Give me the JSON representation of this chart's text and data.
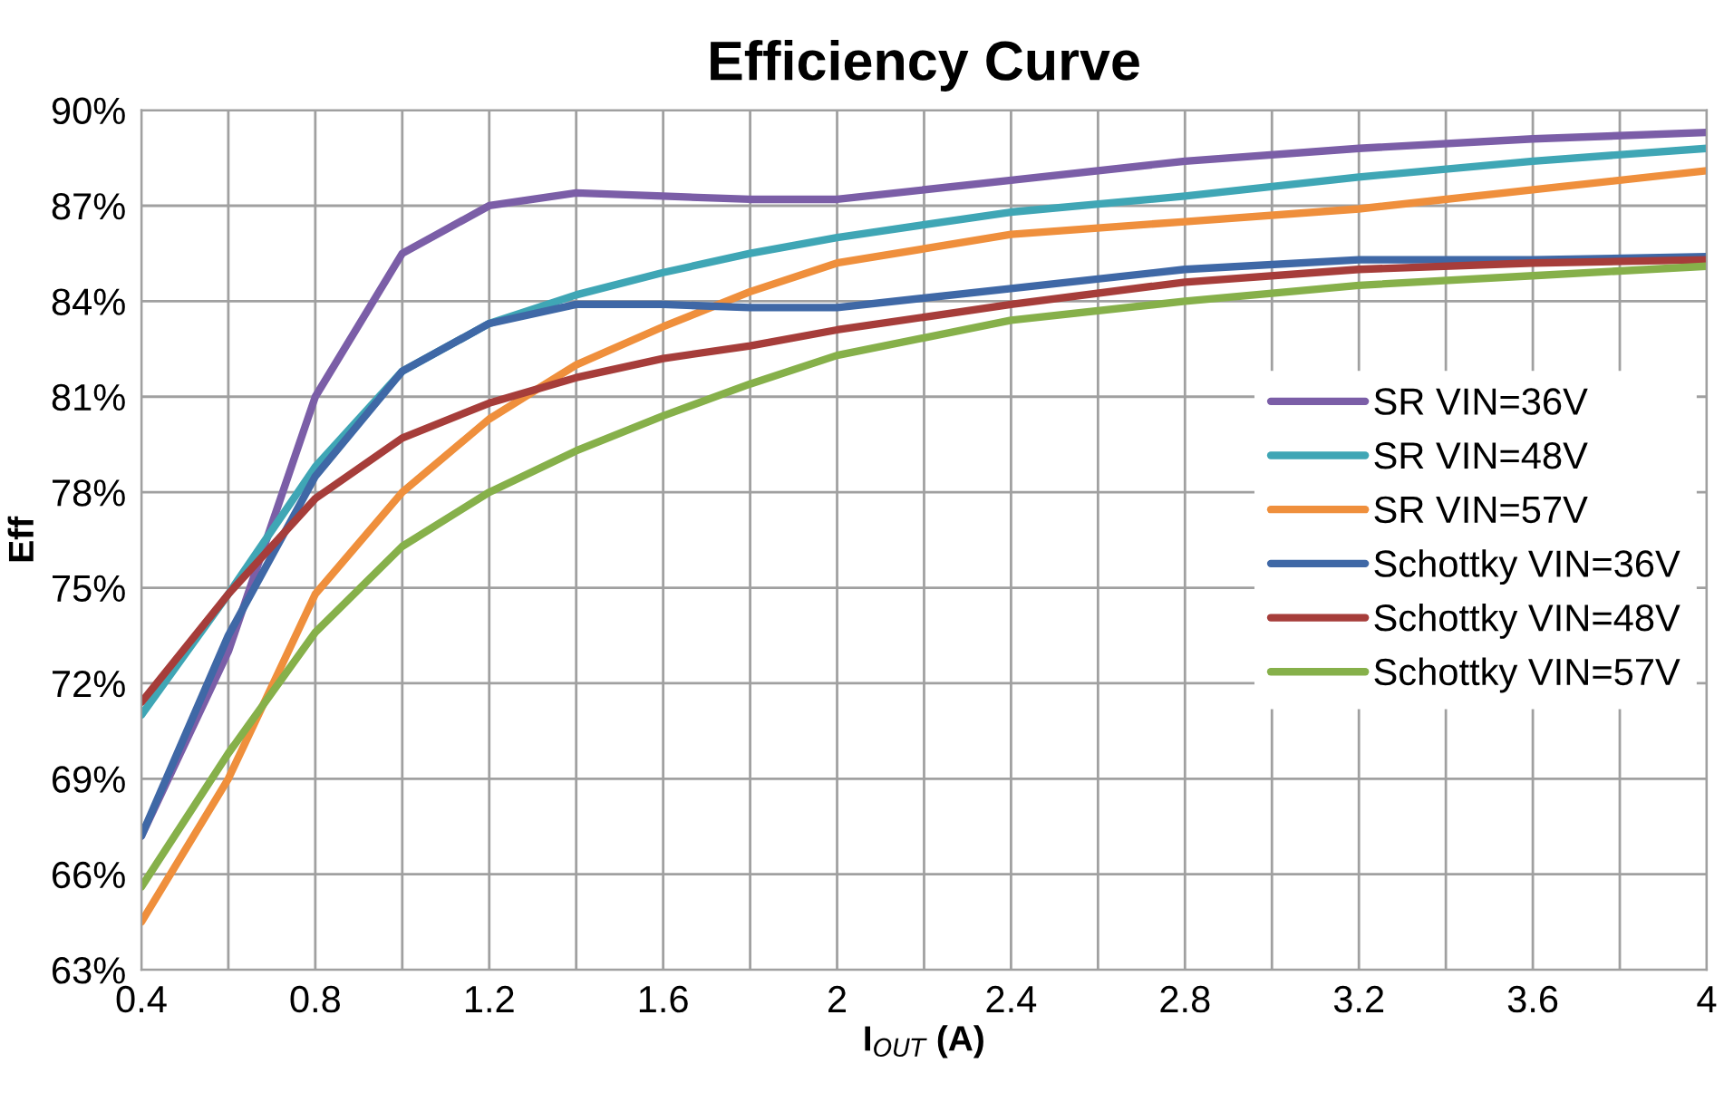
{
  "chart_data": {
    "type": "line",
    "title": "Efficiency Curve",
    "xlabel": "I$_{OUT}$ (A)",
    "ylabel": "Eff",
    "x": [
      0.4,
      0.6,
      0.8,
      1.0,
      1.2,
      1.4,
      1.6,
      1.8,
      2.0,
      2.4,
      2.8,
      3.2,
      3.6,
      4.0
    ],
    "series": [
      {
        "name": "SR VIN=36V",
        "color": "#7b5ea7",
        "values": [
          67.2,
          73,
          81,
          85.5,
          87.0,
          87.4,
          87.3,
          87.2,
          87.2,
          87.8,
          88.4,
          88.8,
          89.1,
          89.3
        ]
      },
      {
        "name": "SR VIN=48V",
        "color": "#3fa6b5",
        "values": [
          71.0,
          74.8,
          78.8,
          81.8,
          83.3,
          84.2,
          84.9,
          85.5,
          86.0,
          86.8,
          87.3,
          87.9,
          88.4,
          88.8
        ]
      },
      {
        "name": "SR VIN=57V",
        "color": "#ef8f3c",
        "values": [
          64.5,
          69.0,
          74.8,
          78.0,
          80.3,
          82.0,
          83.2,
          84.3,
          85.2,
          86.1,
          86.5,
          86.9,
          87.5,
          88.1
        ]
      },
      {
        "name": "Schottky VIN=36V",
        "color": "#3f68a6",
        "values": [
          67.2,
          73.5,
          78.5,
          81.8,
          83.3,
          83.9,
          83.9,
          83.8,
          83.8,
          84.4,
          85.0,
          85.3,
          85.3,
          85.4
        ]
      },
      {
        "name": "Schottky VIN=48V",
        "color": "#a63d3a",
        "values": [
          71.4,
          74.8,
          77.8,
          79.7,
          80.8,
          81.6,
          82.2,
          82.6,
          83.1,
          83.9,
          84.6,
          85.0,
          85.2,
          85.3
        ]
      },
      {
        "name": "Schottky VIN=57V",
        "color": "#86b04a",
        "values": [
          65.6,
          69.8,
          73.6,
          76.3,
          78.0,
          79.3,
          80.4,
          81.4,
          82.3,
          83.4,
          84.0,
          84.5,
          84.8,
          85.1
        ]
      }
    ],
    "xlim": [
      0.4,
      4.0
    ],
    "xticks": [
      0.4,
      {
        "value": 0.6,
        "label": null
      },
      0.8,
      {
        "value": 1.0,
        "label": null
      },
      1.2,
      {
        "value": 1.4,
        "label": null
      },
      1.6,
      {
        "value": 1.8,
        "label": null
      },
      2,
      {
        "value": 2.2,
        "label": null
      },
      2.4,
      {
        "value": 2.6,
        "label": null
      },
      2.8,
      {
        "value": 3.0,
        "label": null
      },
      3.2,
      {
        "value": 3.4,
        "label": null
      },
      3.6,
      {
        "value": 3.8,
        "label": null
      },
      4
    ],
    "ylim": [
      63,
      90
    ],
    "yticks": [
      {
        "value": 63,
        "label": "63%"
      },
      {
        "value": 66,
        "label": "66%"
      },
      {
        "value": 69,
        "label": "69%"
      },
      {
        "value": 72,
        "label": "72%"
      },
      {
        "value": 75,
        "label": "75%"
      },
      {
        "value": 78,
        "label": "78%"
      },
      {
        "value": 81,
        "label": "81%"
      },
      {
        "value": 84,
        "label": "84%"
      },
      {
        "value": 87,
        "label": "87%"
      },
      {
        "value": 90,
        "label": "90%"
      }
    ],
    "grid": true,
    "legend": "right",
    "marker": "none",
    "line_style": "solid"
  }
}
